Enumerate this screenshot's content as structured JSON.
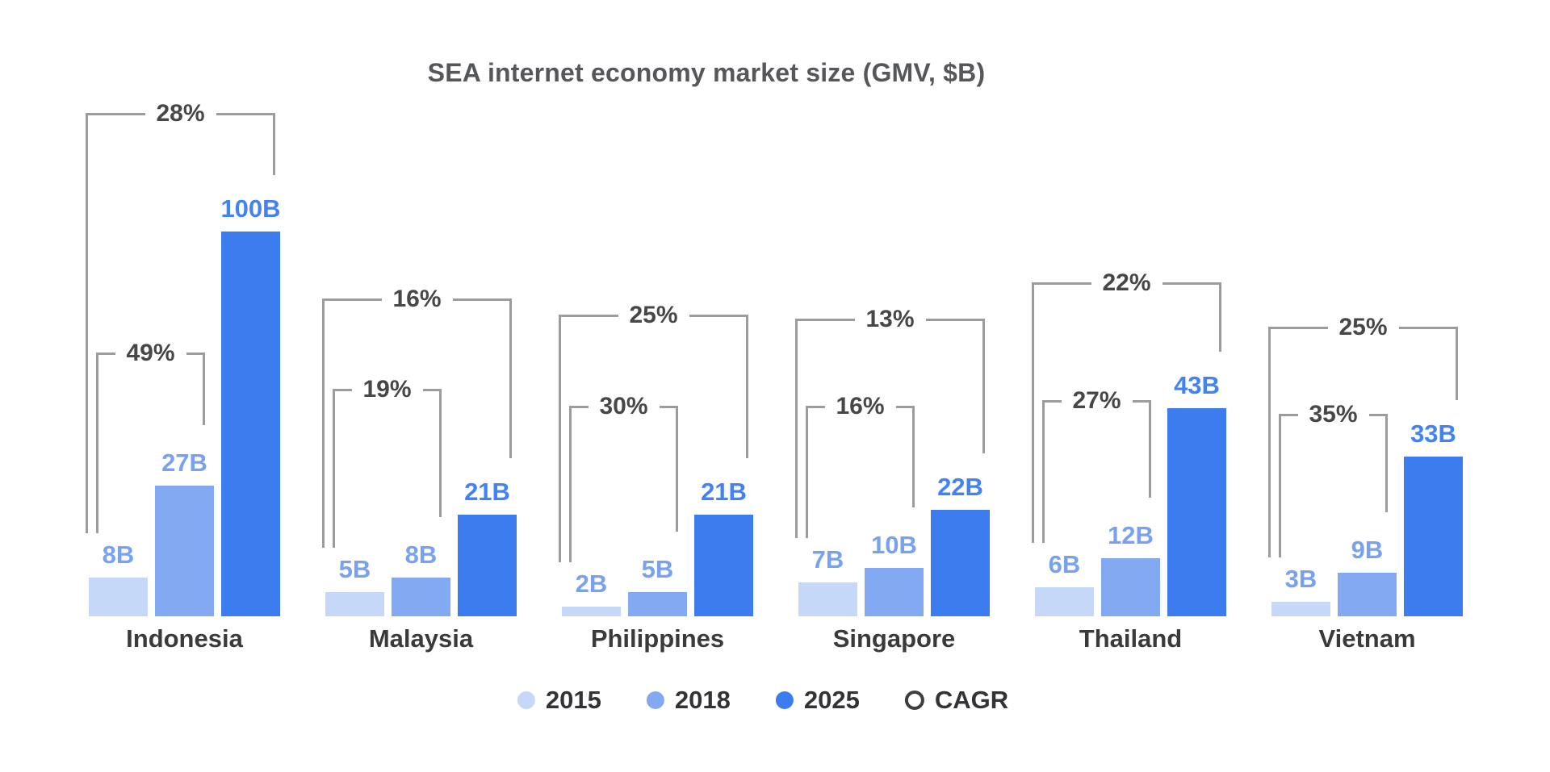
{
  "chart_data": {
    "type": "bar",
    "title": "SEA internet economy market size (GMV, $B)",
    "categories": [
      "Indonesia",
      "Malaysia",
      "Philippines",
      "Singapore",
      "Thailand",
      "Vietnam"
    ],
    "series": [
      {
        "name": "2015",
        "values": [
          8,
          5,
          2,
          7,
          6,
          3
        ],
        "labels": [
          "8B",
          "5B",
          "2B",
          "7B",
          "6B",
          "3B"
        ],
        "color": "#c6d8f7",
        "label_color": "#78a1f0"
      },
      {
        "name": "2018",
        "values": [
          27,
          8,
          5,
          10,
          12,
          9
        ],
        "labels": [
          "27B",
          "8B",
          "5B",
          "10B",
          "12B",
          "9B"
        ],
        "color": "#83a9f2",
        "label_color": "#78a1f0"
      },
      {
        "name": "2025",
        "values": [
          100,
          21,
          21,
          22,
          43,
          33
        ],
        "labels": [
          "100B",
          "21B",
          "21B",
          "22B",
          "43B",
          "33B"
        ],
        "color": "#3d7cee",
        "label_color": "#4282f2"
      }
    ],
    "annotations": {
      "cagr_2015_2018": [
        "49%",
        "19%",
        "30%",
        "16%",
        "27%",
        "35%"
      ],
      "cagr_2015_2025": [
        "28%",
        "16%",
        "25%",
        "13%",
        "22%",
        "25%"
      ]
    },
    "ylabel": "",
    "xlabel": "",
    "axes_visible": false,
    "grid": false,
    "legend_position": "bottom-center",
    "note_visual": "Indonesia 2025 bar (100B) is drawn truncated versus the linear scale used for the other bars"
  },
  "legend": {
    "items": [
      {
        "label": "2015",
        "swatch": "#c6d8f7",
        "type": "dot"
      },
      {
        "label": "2018",
        "swatch": "#83a9f2",
        "type": "dot"
      },
      {
        "label": "2025",
        "swatch": "#3d7cee",
        "type": "dot"
      },
      {
        "label": "CAGR",
        "swatch": "outline",
        "type": "ring"
      }
    ]
  },
  "colors": {
    "bracket_line": "#9c9c9c",
    "percent_text": "#474747",
    "country_text": "#3a3a3a",
    "title_text": "#55575a",
    "legend_text": "#323337",
    "background": "#ffffff"
  }
}
